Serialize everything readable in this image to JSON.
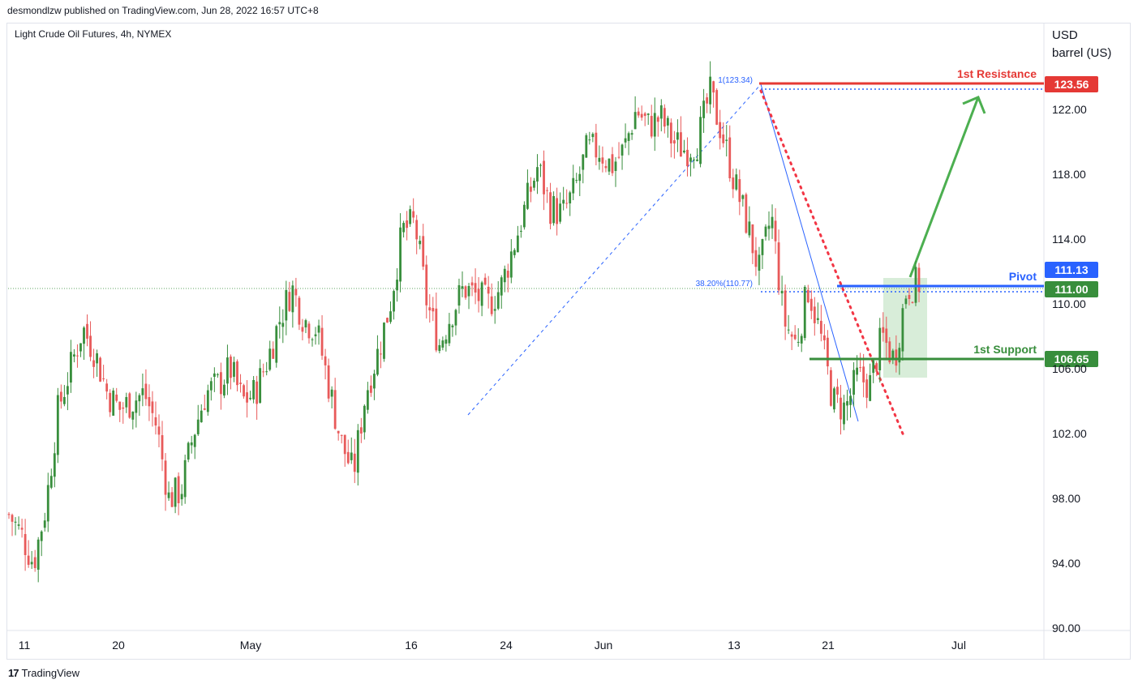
{
  "header": {
    "published": "desmondlzw published on TradingView.com, Jun 28, 2022 16:57 UTC+8"
  },
  "symbol": "Light Crude Oil Futures, 4h, NYMEX",
  "unit": {
    "line1": "USD",
    "line2": "barrel (US)"
  },
  "footer": {
    "brand": "TradingView",
    "logo": "tradingview-logo"
  },
  "colors": {
    "up": "#388e3c",
    "down": "#e85a5a",
    "resistance": "#e53935",
    "pivot": "#2962ff",
    "support": "#388e3c",
    "arrow": "#4caf50",
    "box": "#c8e6c9"
  },
  "chart_data": {
    "type": "candlestick",
    "title": "Light Crude Oil Futures, 4h, NYMEX",
    "ylabel": "USD barrel (US)",
    "ylim": [
      90,
      128
    ],
    "y_ticks": [
      "90.00",
      "94.00",
      "98.00",
      "102.00",
      "106.00",
      "110.00",
      "114.00",
      "118.00",
      "122.00"
    ],
    "x_ticks": [
      "11",
      "20",
      "May",
      "16",
      "24",
      "Jun",
      "13",
      "21",
      "Jul"
    ],
    "price_path": [
      [
        0,
        97.0
      ],
      [
        2,
        95.8
      ],
      [
        4,
        94.0
      ],
      [
        6,
        97.5
      ],
      [
        8,
        103.5
      ],
      [
        10,
        106.0
      ],
      [
        12,
        108.5
      ],
      [
        14,
        107.0
      ],
      [
        16,
        104.5
      ],
      [
        18,
        103.5
      ],
      [
        20,
        104.0
      ],
      [
        22,
        104.5
      ],
      [
        24,
        102.5
      ],
      [
        26,
        98.0
      ],
      [
        28,
        98.5
      ],
      [
        30,
        102.0
      ],
      [
        32,
        104.5
      ],
      [
        34,
        105.0
      ],
      [
        36,
        106.0
      ],
      [
        38,
        104.0
      ],
      [
        40,
        104.5
      ],
      [
        42,
        106.5
      ],
      [
        44,
        109.0
      ],
      [
        46,
        111.0
      ],
      [
        48,
        109.0
      ],
      [
        50,
        108.5
      ],
      [
        52,
        105.0
      ],
      [
        54,
        101.5
      ],
      [
        56,
        99.5
      ],
      [
        58,
        104.5
      ],
      [
        60,
        107.0
      ],
      [
        62,
        110.0
      ],
      [
        64,
        114.5
      ],
      [
        66,
        115.0
      ],
      [
        68,
        110.0
      ],
      [
        70,
        107.5
      ],
      [
        72,
        109.5
      ],
      [
        74,
        111.0
      ],
      [
        76,
        110.5
      ],
      [
        78,
        110.0
      ],
      [
        80,
        111.0
      ],
      [
        82,
        113.5
      ],
      [
        84,
        116.0
      ],
      [
        86,
        118.5
      ],
      [
        88,
        116.0
      ],
      [
        90,
        115.5
      ],
      [
        92,
        117.0
      ],
      [
        94,
        119.5
      ],
      [
        96,
        119.5
      ],
      [
        98,
        118.5
      ],
      [
        100,
        119.5
      ],
      [
        102,
        122.0
      ],
      [
        104,
        121.0
      ],
      [
        106,
        121.5
      ],
      [
        108,
        120.0
      ],
      [
        110,
        119.5
      ],
      [
        112,
        120.0
      ],
      [
        114,
        123.0
      ],
      [
        116,
        120.5
      ],
      [
        118,
        117.5
      ],
      [
        120,
        115.0
      ],
      [
        122,
        112.0
      ],
      [
        124,
        115.5
      ],
      [
        126,
        109.0
      ],
      [
        128,
        107.5
      ],
      [
        130,
        111.0
      ],
      [
        132,
        108.0
      ],
      [
        134,
        104.0
      ],
      [
        136,
        103.5
      ],
      [
        138,
        105.5
      ],
      [
        140,
        105.0
      ],
      [
        142,
        108.0
      ],
      [
        144,
        106.5
      ],
      [
        146,
        111.0
      ],
      [
        148,
        111.3
      ]
    ],
    "levels": [
      {
        "name": "1st Resistance",
        "value": 123.56,
        "label": "123.56"
      },
      {
        "name": "Pivot",
        "value": 111.13,
        "label": "111.13"
      },
      {
        "name": "1st Support",
        "value": 106.65,
        "label": "106.65"
      }
    ],
    "last_price": {
      "value": 111.0,
      "label": "111.00"
    },
    "fibonacci": [
      {
        "ratio": "1(123.34)",
        "value": 123.34
      },
      {
        "ratio": "38.20%(110.77)",
        "value": 110.77
      }
    ],
    "horizontal_reference": 112.0
  }
}
